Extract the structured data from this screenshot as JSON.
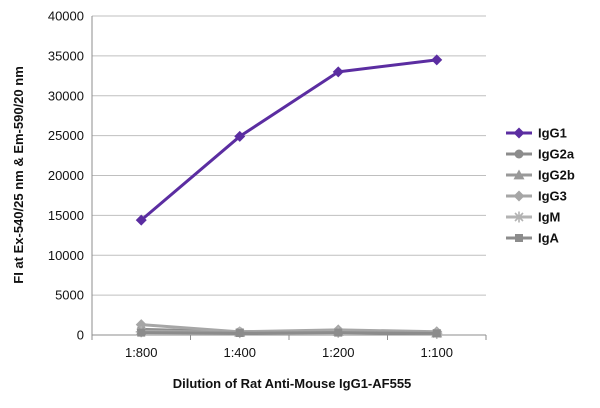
{
  "chart_data": {
    "type": "line",
    "categories": [
      "1:800",
      "1:400",
      "1:200",
      "1:100"
    ],
    "xlabel": "Dilution of Rat Anti-Mouse IgG1-AF555",
    "ylabel": "FI at Ex-540/25 nm & Em-590/20 nm",
    "ylim": [
      0,
      40000
    ],
    "yticks": [
      0,
      5000,
      10000,
      15000,
      20000,
      25000,
      30000,
      35000,
      40000
    ],
    "grid": true,
    "legend_position": "right",
    "series": [
      {
        "name": "IgG1",
        "color": "#5b2da1",
        "marker": "diamond",
        "values": [
          14400,
          24900,
          33000,
          34500
        ]
      },
      {
        "name": "IgG2a",
        "color": "#8c8c8c",
        "marker": "circle",
        "values": [
          700,
          400,
          500,
          300
        ]
      },
      {
        "name": "IgG2b",
        "color": "#999999",
        "marker": "triangle",
        "values": [
          500,
          350,
          450,
          250
        ]
      },
      {
        "name": "IgG3",
        "color": "#a6a6a6",
        "marker": "diamond",
        "values": [
          1300,
          400,
          650,
          400
        ]
      },
      {
        "name": "IgM",
        "color": "#b3b3b3",
        "marker": "star",
        "values": [
          400,
          300,
          350,
          200
        ]
      },
      {
        "name": "IgA",
        "color": "#8c8c8c",
        "marker": "square",
        "values": [
          300,
          250,
          300,
          200
        ]
      }
    ]
  }
}
